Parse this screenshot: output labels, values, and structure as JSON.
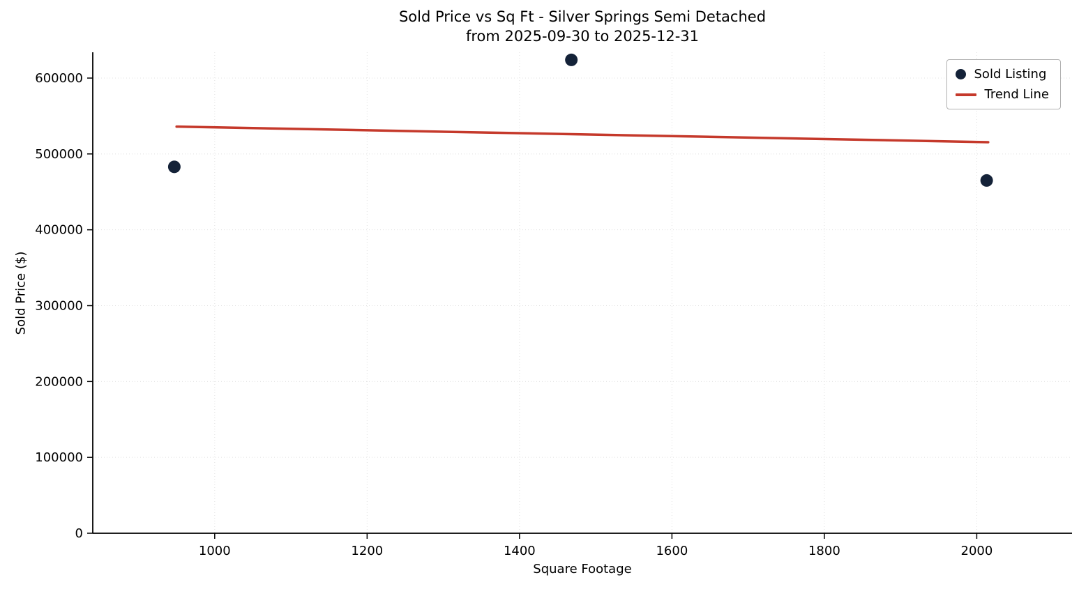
{
  "title": {
    "line1": "Sold Price vs Sq Ft - Silver Springs Semi Detached",
    "line2": "from 2025-09-30 to 2025-12-31"
  },
  "chart_data": {
    "type": "scatter",
    "title": "Sold Price vs Sq Ft - Silver Springs Semi Detached from 2025-09-30 to 2025-12-31",
    "xlabel": "Square Footage",
    "ylabel": "Sold Price ($)",
    "xlim": [
      840,
      2125
    ],
    "ylim": [
      0,
      634000
    ],
    "xticks": [
      1000,
      1200,
      1400,
      1600,
      1800,
      2000
    ],
    "yticks": [
      0,
      100000,
      200000,
      300000,
      400000,
      500000,
      600000
    ],
    "grid": true,
    "legend_position": "upper right",
    "colors": {
      "point_color": "#142238",
      "trend_color": "#c5392b",
      "grid_color": "#e0e0e0",
      "axis_color": "#000000"
    },
    "series": [
      {
        "name": "Sold Listing",
        "kind": "scatter",
        "color": "#142238",
        "points": [
          {
            "x": 947,
            "y": 483000
          },
          {
            "x": 1468,
            "y": 624000
          },
          {
            "x": 2013,
            "y": 465000
          }
        ]
      },
      {
        "name": "Trend Line",
        "kind": "line",
        "color": "#c5392b",
        "points": [
          {
            "x": 950,
            "y": 536000
          },
          {
            "x": 2015,
            "y": 515500
          }
        ]
      }
    ]
  }
}
